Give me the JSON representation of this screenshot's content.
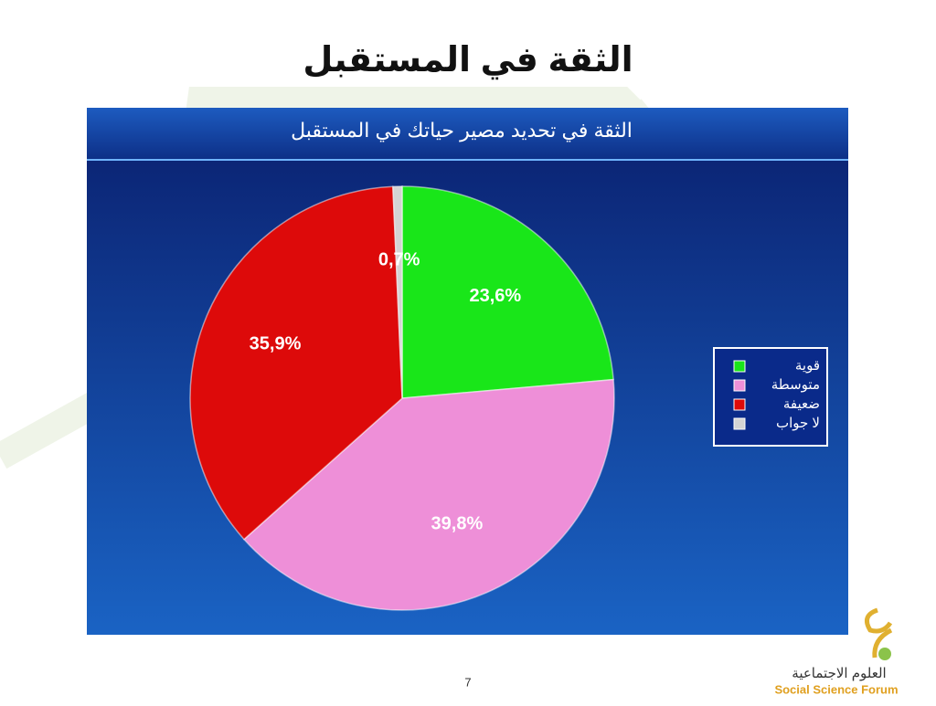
{
  "slide": {
    "title": "الثقة في المستقبل",
    "page_number": "7"
  },
  "logo": {
    "arabic": "العلوم الاجتماعية",
    "english": "Social Science Forum"
  },
  "chart_data": {
    "type": "pie",
    "title": "الثقة في تحديد مصير حياتك في المستقبل",
    "categories": [
      "قوية",
      "متوسطة",
      "ضعيفة",
      "لا جواب"
    ],
    "values": [
      23.6,
      39.8,
      35.9,
      0.7
    ],
    "value_labels": [
      "23,6%",
      "39,8%",
      "35,9%",
      "0,7%"
    ],
    "colors": [
      "#19e619",
      "#ee8fd8",
      "#dd0a0a",
      "#d4d4d4"
    ],
    "legend": "right"
  }
}
